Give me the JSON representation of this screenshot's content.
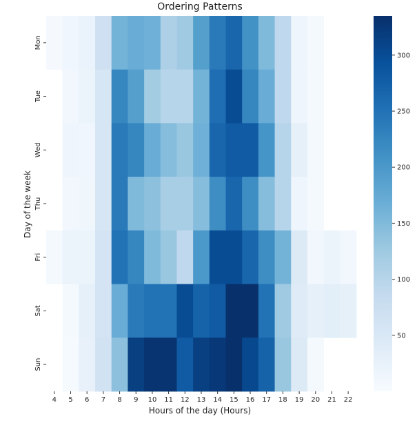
{
  "chart_data": {
    "type": "heatmap",
    "title": "Ordering Patterns",
    "xlabel": "Hours of the day (Hours)",
    "ylabel": "Day of the week",
    "x": [
      "4",
      "5",
      "6",
      "7",
      "8",
      "9",
      "10",
      "11",
      "12",
      "13",
      "14",
      "15",
      "16",
      "17",
      "18",
      "19",
      "20",
      "21",
      "22"
    ],
    "y": [
      "Mon",
      "Tue",
      "Wed",
      "Thu",
      "Fri",
      "Sat",
      "Sun"
    ],
    "values": [
      [
        4,
        12,
        22,
        70,
        160,
        170,
        165,
        110,
        125,
        190,
        240,
        265,
        210,
        150,
        90,
        15,
        5,
        null,
        null
      ],
      [
        null,
        10,
        20,
        55,
        225,
        190,
        120,
        100,
        100,
        160,
        255,
        300,
        225,
        170,
        90,
        15,
        5,
        null,
        null
      ],
      [
        null,
        15,
        12,
        55,
        240,
        225,
        170,
        145,
        130,
        165,
        265,
        280,
        280,
        205,
        100,
        30,
        5,
        null,
        null
      ],
      [
        null,
        10,
        14,
        55,
        240,
        150,
        140,
        115,
        115,
        145,
        215,
        265,
        215,
        145,
        100,
        15,
        5,
        null,
        null
      ],
      [
        5,
        20,
        20,
        60,
        250,
        225,
        150,
        130,
        90,
        200,
        300,
        300,
        265,
        215,
        160,
        45,
        10,
        20,
        10
      ],
      [
        null,
        5,
        30,
        60,
        170,
        240,
        250,
        250,
        300,
        270,
        280,
        335,
        335,
        250,
        125,
        40,
        30,
        35,
        30
      ],
      [
        null,
        3,
        25,
        65,
        140,
        315,
        330,
        330,
        280,
        315,
        325,
        335,
        305,
        270,
        130,
        45,
        5,
        null,
        null
      ]
    ],
    "colorbar": {
      "min": 0,
      "max": 335,
      "ticks": [
        50,
        100,
        150,
        200,
        250,
        300
      ]
    },
    "colormap": [
      "#f7fbff",
      "#deebf7",
      "#c6dbef",
      "#9ecae1",
      "#6baed6",
      "#4292c6",
      "#2171b5",
      "#08519c",
      "#08306b"
    ],
    "grid": false
  }
}
